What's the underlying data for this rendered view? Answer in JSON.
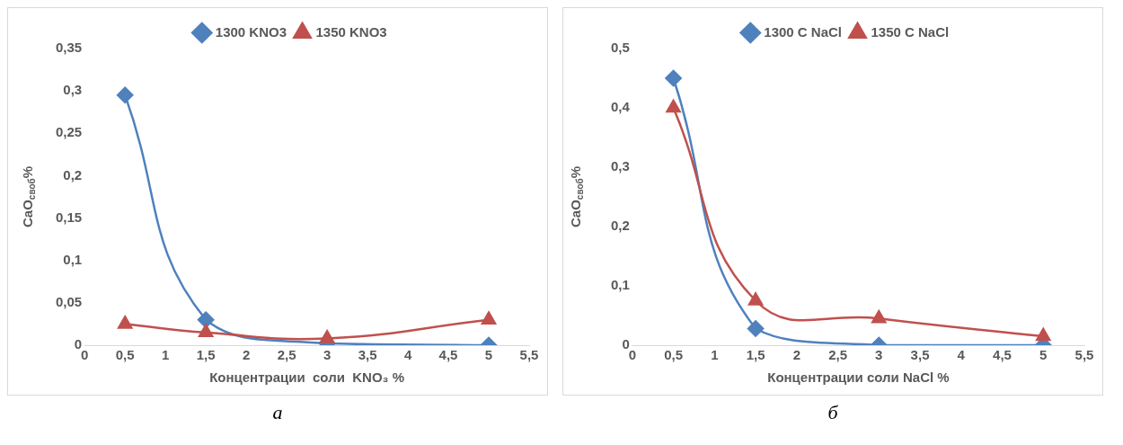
{
  "chart_data": [
    {
      "type": "line",
      "xlabel": "Концентрации  соли  KNO₃ %",
      "ylabel": "CaO$_{своб}$%",
      "annotations": [
        "а"
      ],
      "legend": "top",
      "grid": false,
      "line_style": "solid",
      "xlim": [
        0,
        5.5
      ],
      "xticks": [
        0,
        {
          "value": 0.5,
          "label": "0,5"
        },
        1,
        {
          "value": 1.5,
          "label": "1,5"
        },
        2,
        {
          "value": 2.5,
          "label": "2,5"
        },
        3,
        {
          "value": 3.5,
          "label": "3,5"
        },
        4,
        {
          "value": 4.5,
          "label": "4,5"
        },
        5,
        {
          "value": 5.5,
          "label": "5,5"
        }
      ],
      "ylim": [
        0,
        0.35
      ],
      "yticks": [
        0,
        {
          "value": 0.05,
          "label": "0,05"
        },
        {
          "value": 0.1,
          "label": "0,1"
        },
        {
          "value": 0.15,
          "label": "0,15"
        },
        {
          "value": 0.2,
          "label": "0,2"
        },
        {
          "value": 0.25,
          "label": "0,25"
        },
        {
          "value": 0.3,
          "label": "0,3"
        },
        {
          "value": 0.35,
          "label": "0,35"
        }
      ],
      "x": [
        0.5,
        1.5,
        3,
        5
      ],
      "series": [
        {
          "name": "1300 KNO3",
          "color": "#4f81bd",
          "marker": "diamond",
          "values": [
            0.295,
            0.03,
            0.002,
            0
          ]
        },
        {
          "name": "1350 KNO3",
          "color": "#c0504d",
          "marker": "triangle",
          "values": [
            0.025,
            0.015,
            0.008,
            0.03
          ]
        }
      ]
    },
    {
      "type": "line",
      "xlabel": "Концентрации соли NaCl %",
      "ylabel": "CaO$_{своб}$%",
      "annotations": [
        "б"
      ],
      "legend": "top",
      "grid": false,
      "line_style": "solid",
      "xlim": [
        0,
        5.5
      ],
      "xticks": [
        0,
        {
          "value": 0.5,
          "label": "0,5"
        },
        1,
        {
          "value": 1.5,
          "label": "1,5"
        },
        2,
        {
          "value": 2.5,
          "label": "2,5"
        },
        3,
        {
          "value": 3.5,
          "label": "3,5"
        },
        4,
        {
          "value": 4.5,
          "label": "4,5"
        },
        5,
        {
          "value": 5.5,
          "label": "5,5"
        }
      ],
      "ylim": [
        0,
        0.5
      ],
      "yticks": [
        0,
        {
          "value": 0.1,
          "label": "0,1"
        },
        {
          "value": 0.2,
          "label": "0,2"
        },
        {
          "value": 0.3,
          "label": "0,3"
        },
        {
          "value": 0.4,
          "label": "0,4"
        },
        {
          "value": 0.5,
          "label": "0,5"
        }
      ],
      "x": [
        0.5,
        1.5,
        3,
        5
      ],
      "series": [
        {
          "name": "1300 C NaCl",
          "color": "#4f81bd",
          "marker": "diamond",
          "values": [
            0.45,
            0.028,
            0,
            0
          ]
        },
        {
          "name": "1350 C NaCl",
          "color": "#c0504d",
          "marker": "triangle",
          "values": [
            0.4,
            0.075,
            0.045,
            0.015
          ]
        }
      ]
    }
  ]
}
